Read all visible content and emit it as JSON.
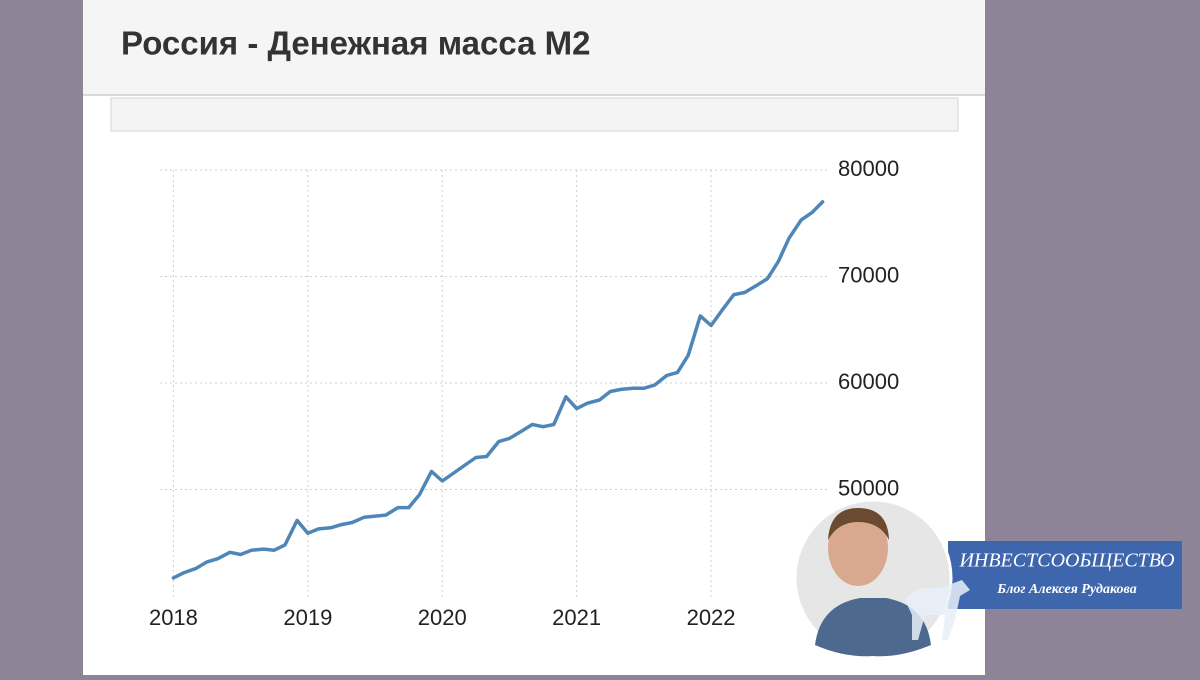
{
  "chart_data": {
    "type": "line",
    "title": "Россия - Денежная масса M2",
    "x": [
      2018,
      2018.08,
      2018.17,
      2018.25,
      2018.33,
      2018.42,
      2018.5,
      2018.58,
      2018.67,
      2018.75,
      2018.83,
      2018.92,
      2019,
      2019.08,
      2019.17,
      2019.25,
      2019.33,
      2019.42,
      2019.5,
      2019.58,
      2019.67,
      2019.75,
      2019.83,
      2019.92,
      2020,
      2020.08,
      2020.17,
      2020.25,
      2020.33,
      2020.42,
      2020.5,
      2020.58,
      2020.67,
      2020.75,
      2020.83,
      2020.92,
      2021,
      2021.08,
      2021.17,
      2021.25,
      2021.33,
      2021.42,
      2021.5,
      2021.58,
      2021.67,
      2021.75,
      2021.83,
      2021.92,
      2022,
      2022.08,
      2022.17,
      2022.25,
      2022.33,
      2022.42,
      2022.5,
      2022.58,
      2022.67,
      2022.75,
      2022.83
    ],
    "values": [
      41700,
      42200,
      42600,
      43200,
      43500,
      44100,
      43900,
      44300,
      44400,
      44300,
      44800,
      47100,
      45900,
      46300,
      46400,
      46700,
      46900,
      47400,
      47500,
      47600,
      48300,
      48300,
      49500,
      51700,
      50800,
      51500,
      52300,
      53000,
      53100,
      54500,
      54800,
      55400,
      56100,
      55900,
      56100,
      58700,
      57600,
      58100,
      58400,
      59200,
      59400,
      59500,
      59500,
      59800,
      60700,
      61000,
      62600,
      66300,
      65400,
      66800,
      68300,
      68500,
      69100,
      69800,
      71400,
      73600,
      75300,
      76000,
      77000
    ],
    "color": "#4f86b8",
    "xlim": [
      2017.9,
      2022.87
    ],
    "xticks": [
      2018,
      2019,
      2020,
      2021,
      2022
    ],
    "ylim": [
      40000,
      80000
    ],
    "yticks": [
      50000,
      60000,
      70000,
      80000
    ],
    "grid": true
  },
  "badge": {
    "title": "ИНВЕСТСООБЩЕСТВО",
    "subtitle": "Блог Алексея Рудакова"
  }
}
